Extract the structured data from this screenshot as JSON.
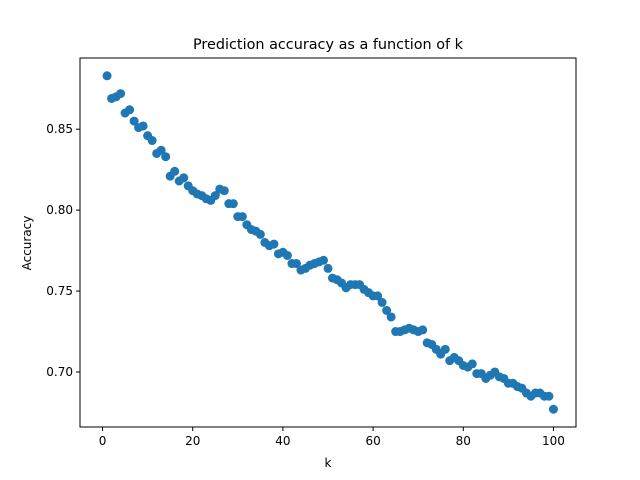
{
  "chart_data": {
    "type": "scatter",
    "title": "Prediction accuracy as a function of k",
    "xlabel": "k",
    "ylabel": "Accuracy",
    "xlim": [
      -5,
      105
    ],
    "ylim": [
      0.666,
      0.894
    ],
    "grid": false,
    "legend": "none",
    "marker_color": "#1f77b4",
    "x_ticks": [
      0,
      20,
      40,
      60,
      80,
      100
    ],
    "x_tick_labels": [
      "0",
      "20",
      "40",
      "60",
      "80",
      "100"
    ],
    "y_ticks": [
      0.7,
      0.75,
      0.8,
      0.85
    ],
    "y_tick_labels": [
      "0.70",
      "0.75",
      "0.80",
      "0.85"
    ],
    "x": [
      1,
      2,
      3,
      4,
      5,
      6,
      7,
      8,
      9,
      10,
      11,
      12,
      13,
      14,
      15,
      16,
      17,
      18,
      19,
      20,
      21,
      22,
      23,
      24,
      25,
      26,
      27,
      28,
      29,
      30,
      31,
      32,
      33,
      34,
      35,
      36,
      37,
      38,
      39,
      40,
      41,
      42,
      43,
      44,
      45,
      46,
      47,
      48,
      49,
      50,
      51,
      52,
      53,
      54,
      55,
      56,
      57,
      58,
      59,
      60,
      61,
      62,
      63,
      64,
      65,
      66,
      67,
      68,
      69,
      70,
      71,
      72,
      73,
      74,
      75,
      76,
      77,
      78,
      79,
      80,
      81,
      82,
      83,
      84,
      85,
      86,
      87,
      88,
      89,
      90,
      91,
      92,
      93,
      94,
      95,
      96,
      97,
      98,
      99,
      100
    ],
    "y": [
      0.883,
      0.869,
      0.87,
      0.872,
      0.86,
      0.862,
      0.855,
      0.851,
      0.852,
      0.846,
      0.843,
      0.835,
      0.837,
      0.833,
      0.821,
      0.824,
      0.818,
      0.82,
      0.815,
      0.812,
      0.81,
      0.809,
      0.807,
      0.806,
      0.809,
      0.813,
      0.812,
      0.804,
      0.804,
      0.796,
      0.796,
      0.791,
      0.788,
      0.787,
      0.785,
      0.78,
      0.778,
      0.779,
      0.773,
      0.774,
      0.772,
      0.767,
      0.767,
      0.763,
      0.764,
      0.766,
      0.767,
      0.768,
      0.769,
      0.764,
      0.758,
      0.757,
      0.755,
      0.752,
      0.754,
      0.754,
      0.754,
      0.751,
      0.749,
      0.747,
      0.747,
      0.743,
      0.738,
      0.734,
      0.725,
      0.725,
      0.726,
      0.727,
      0.726,
      0.725,
      0.726,
      0.718,
      0.717,
      0.714,
      0.711,
      0.714,
      0.707,
      0.709,
      0.707,
      0.704,
      0.703,
      0.705,
      0.699,
      0.699,
      0.696,
      0.698,
      0.7,
      0.697,
      0.696,
      0.693,
      0.693,
      0.691,
      0.69,
      0.687,
      0.685,
      0.687,
      0.687,
      0.685,
      0.685,
      0.677
    ]
  }
}
